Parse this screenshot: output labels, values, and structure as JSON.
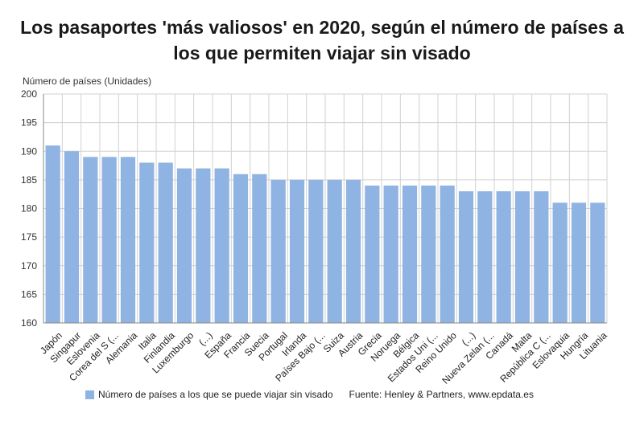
{
  "title_lines": [
    "Los pasaportes 'más valiosos' en 2020, según el número de países a",
    "los que permiten viajar sin visado"
  ],
  "source": "Fuente: Henley & Partners, www.epdata.es",
  "colors": {
    "bar": "#8fb3e2",
    "grid": "#d0d0d0",
    "axis": "#888888"
  },
  "chart_data": {
    "type": "bar",
    "title": "Los pasaportes 'más valiosos' en 2020, según el número de países a los que permiten viajar sin visado",
    "ylabel": "Número de países (Unidades)",
    "xlabel": "",
    "ylim": [
      160,
      200
    ],
    "yticks": [
      160,
      165,
      170,
      175,
      180,
      185,
      190,
      195,
      200
    ],
    "grid": true,
    "legend_position": "bottom",
    "categories": [
      "Japón",
      "Singapur",
      "Eslovenia",
      "Corea del S (...",
      "Alemania",
      "Italia",
      "Finlandia",
      "Luxemburgo",
      "(...)",
      "España",
      "Francia",
      "Suecia",
      "Portugal",
      "Irlanda",
      "Países Bajo (...",
      "Suiza",
      "Austria",
      "Grecia",
      "Noruega",
      "Bélgica",
      "Estados Uni (...",
      "Reino Unido",
      "(...)",
      "Nueva Zelan (...",
      "Canadá",
      "Malta",
      "República C (...",
      "Eslovaquia",
      "Hungría",
      "Lituania"
    ],
    "series": [
      {
        "name": "Número de países a los que se puede viajar sin visado",
        "values": [
          191,
          190,
          189,
          189,
          189,
          188,
          188,
          187,
          187,
          187,
          186,
          186,
          185,
          185,
          185,
          185,
          185,
          184,
          184,
          184,
          184,
          184,
          183,
          183,
          183,
          183,
          183,
          181,
          181,
          181
        ]
      }
    ]
  }
}
